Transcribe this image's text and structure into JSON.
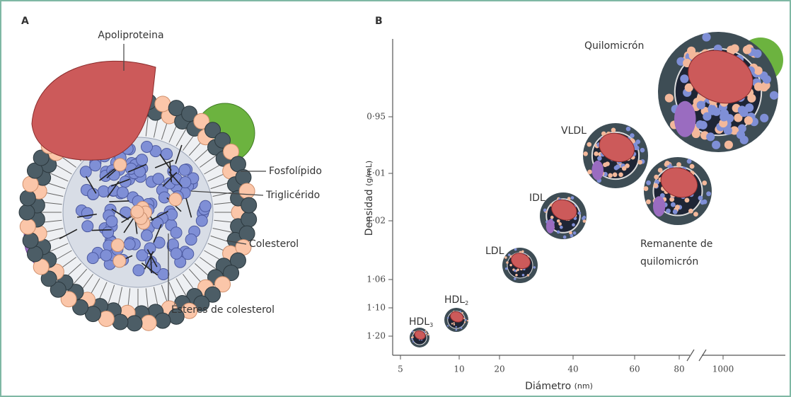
{
  "panel_a": {
    "letter": "A",
    "labels": {
      "apolipoprotein": "Apoliproteina",
      "phospholipid": "Fosfolípido",
      "triglyceride": "Triglicérido",
      "cholesterol": "Colesterol",
      "cholesterol_esters": "Ésteres de colesterol"
    }
  },
  "panel_b": {
    "letter": "B",
    "y_label": "Densidad",
    "y_unit": "(g/mL)",
    "x_label": "Diámetro",
    "x_unit": "(nm)",
    "y_ticks": [
      "0·95",
      "1·01",
      "1·02",
      "1·06",
      "1·10",
      "1·20"
    ],
    "x_ticks": [
      "5",
      "10",
      "20",
      "40",
      "60",
      "80",
      "1000"
    ],
    "particles": [
      {
        "label": "HDL",
        "sub": "3"
      },
      {
        "label": "HDL",
        "sub": "2"
      },
      {
        "label": "LDL"
      },
      {
        "label": "IDL"
      },
      {
        "label": "VLDL"
      },
      {
        "label": "Quilomicrón"
      },
      {
        "label": "Remanente de",
        "label2": "quilomicrón"
      }
    ]
  }
}
